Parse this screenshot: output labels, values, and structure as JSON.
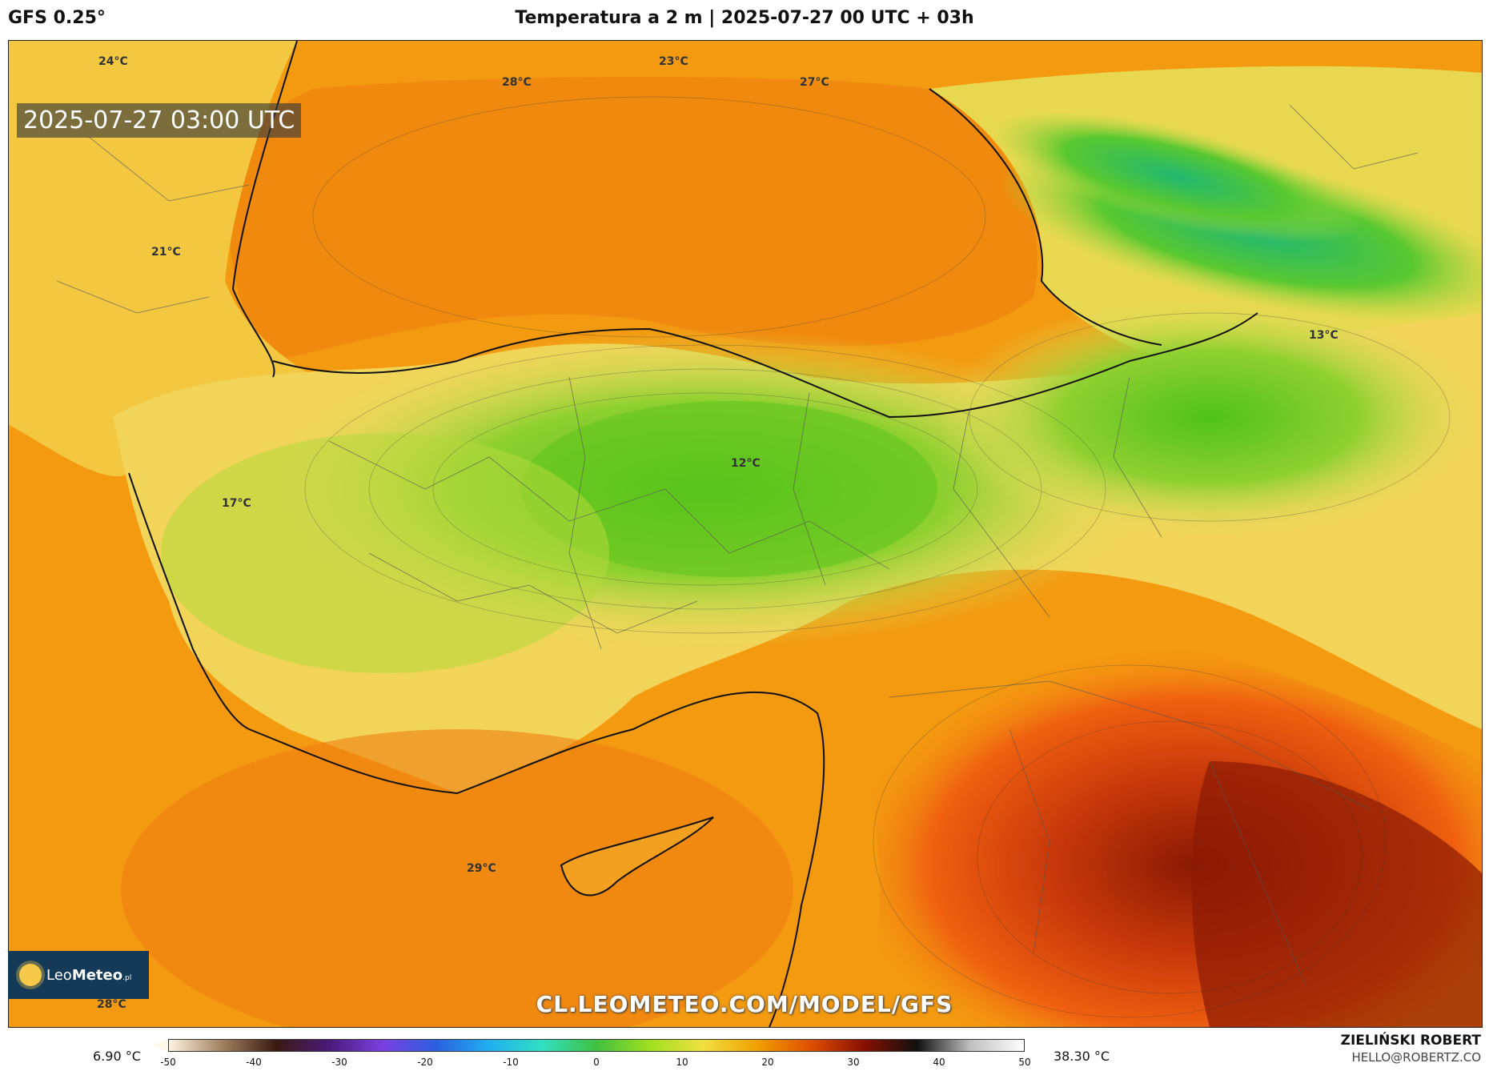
{
  "header": {
    "model": "GFS 0.25°",
    "title": "Temperatura a 2 m | 2025-07-27 00 UTC + 03h"
  },
  "map": {
    "time_label": "2025-07-27 03:00 UTC",
    "labels": [
      {
        "text": "24°C"
      },
      {
        "text": "23°C"
      },
      {
        "text": "28°C"
      },
      {
        "text": "27°C"
      },
      {
        "text": "21°C"
      },
      {
        "text": "13°C"
      },
      {
        "text": "12°C"
      },
      {
        "text": "17°C"
      },
      {
        "text": "29°C"
      },
      {
        "text": "28°C"
      }
    ],
    "watermark": "CL.LEOMETEO.COM/MODEL/GFS",
    "colors": {
      "sea_orange": "#f39a10",
      "warm_orange": "#f07a10",
      "hot_red": "#c83008",
      "very_hot": "#8a1a04",
      "yellow": "#f3d85a",
      "light_green": "#a8d83a",
      "green": "#5ec41c",
      "deep_green": "#2fb86a"
    }
  },
  "logo": {
    "name_light": "Leo",
    "name_bold": "Meteo",
    "suffix": ".pl"
  },
  "colorbar": {
    "min_label": "6.90 °C",
    "max_label": "38.30 °C",
    "ticks": [
      "-50",
      "-40",
      "-30",
      "-20",
      "-10",
      "0",
      "10",
      "20",
      "30",
      "40",
      "50"
    ],
    "stops": [
      "#fff3e0",
      "#a08060",
      "#3a1a10",
      "#4a1a7a",
      "#7a40e0",
      "#2a60e0",
      "#20b0f0",
      "#30e0c0",
      "#40c040",
      "#a0e020",
      "#f0e040",
      "#f0a000",
      "#e05000",
      "#8a1000",
      "#101010",
      "#c0c0c0",
      "#ffffff"
    ]
  },
  "credits": {
    "author": "ZIELIŃSKI ROBERT",
    "email": "HELLO@ROBERTZ.CO"
  }
}
